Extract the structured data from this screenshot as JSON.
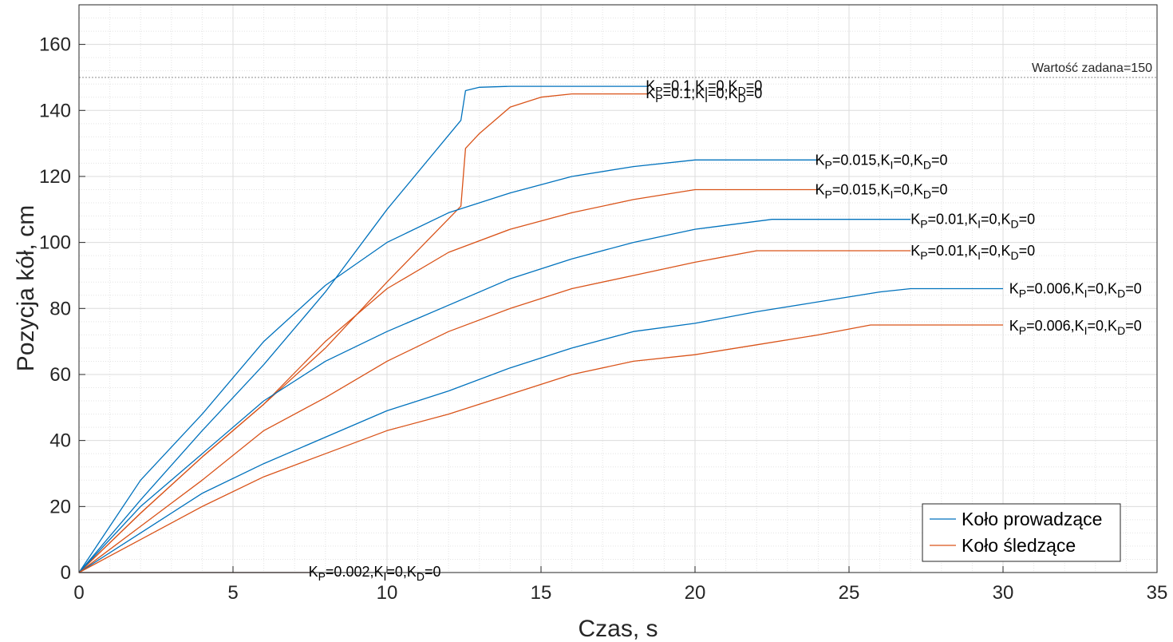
{
  "chart_data": {
    "type": "line",
    "xlabel": "Czas, s",
    "ylabel": "Pozycja kół, cm",
    "xlim": [
      0,
      35
    ],
    "ylim": [
      0,
      172
    ],
    "xticks": [
      0,
      5,
      10,
      15,
      20,
      25,
      30,
      35
    ],
    "yticks": [
      0,
      20,
      40,
      60,
      80,
      100,
      120,
      140,
      160
    ],
    "grid": "major and minor",
    "colors": {
      "prowadzace": "#0072BD",
      "sledzace": "#D95319",
      "reference": "#8c8c8c"
    },
    "reference_line": {
      "y": 150,
      "label": "Wartość zadana=150"
    },
    "legend": {
      "placement": "bottom-right",
      "entries": [
        {
          "label": "Koło prowadzące",
          "color": "#0072BD"
        },
        {
          "label": "Koło śledzące",
          "color": "#D95319"
        }
      ]
    },
    "series": [
      {
        "name": "Koło prowadzące",
        "gain": "0.1",
        "color": "#0072BD",
        "x": [
          0,
          2,
          4,
          6,
          8,
          10,
          12.4,
          12.55,
          13,
          14,
          18.5
        ],
        "y": [
          0,
          22,
          43,
          63,
          85,
          110,
          137,
          146,
          147,
          147.3,
          147.3
        ]
      },
      {
        "name": "Koło śledzące",
        "gain": "0.1",
        "color": "#D95319",
        "x": [
          0,
          2,
          4,
          6,
          8,
          10,
          12.4,
          12.55,
          13,
          14,
          15,
          16,
          18.5
        ],
        "y": [
          0,
          18,
          35,
          51,
          68,
          88,
          111,
          128.5,
          133,
          141,
          144,
          145,
          145
        ]
      },
      {
        "name": "Koło prowadzące",
        "gain": "0.015",
        "color": "#0072BD",
        "x": [
          0,
          2,
          4,
          6,
          8,
          10,
          12,
          14,
          16,
          18,
          20,
          24
        ],
        "y": [
          0,
          28,
          48,
          70,
          87,
          100,
          109,
          115,
          120,
          123,
          125,
          125
        ]
      },
      {
        "name": "Koło śledzące",
        "gain": "0.015",
        "color": "#D95319",
        "x": [
          0,
          2,
          4,
          6,
          8,
          10,
          12,
          14,
          16,
          18,
          20,
          24
        ],
        "y": [
          0,
          18,
          35,
          51,
          70,
          86,
          97,
          104,
          109,
          113,
          116,
          116
        ]
      },
      {
        "name": "Koło prowadzące",
        "gain": "0.01",
        "color": "#0072BD",
        "x": [
          0,
          2,
          4,
          6,
          8,
          10,
          12,
          14,
          16,
          18,
          20,
          22.5,
          27
        ],
        "y": [
          0,
          20,
          36,
          52,
          64,
          73,
          81,
          89,
          95,
          100,
          104,
          107,
          107
        ]
      },
      {
        "name": "Koło śledzące",
        "gain": "0.01",
        "color": "#D95319",
        "x": [
          0,
          2,
          4,
          6,
          8,
          10,
          12,
          14,
          16,
          18,
          20,
          22,
          27
        ],
        "y": [
          0,
          14,
          28,
          43,
          53,
          64,
          73,
          80,
          86,
          90,
          94,
          97.5,
          97.5
        ]
      },
      {
        "name": "Koło prowadzące",
        "gain": "0.006",
        "color": "#0072BD",
        "x": [
          0,
          2,
          4,
          6,
          8,
          10,
          12,
          14,
          16,
          18,
          20,
          22,
          24,
          26,
          27,
          30
        ],
        "y": [
          0,
          12,
          24,
          33,
          41,
          49,
          55,
          62,
          68,
          73,
          75.5,
          79,
          82,
          85,
          86,
          86
        ]
      },
      {
        "name": "Koło śledzące",
        "gain": "0.006",
        "color": "#D95319",
        "x": [
          0,
          2,
          4,
          6,
          8,
          10,
          12,
          14,
          16,
          18,
          20,
          22,
          24,
          25.7,
          30
        ],
        "y": [
          0,
          10,
          20,
          29,
          36,
          43,
          48,
          54,
          60,
          64,
          66,
          69,
          72,
          75,
          75
        ]
      },
      {
        "name": "Koło prowadzące",
        "gain": "0.002",
        "color": "#0072BD",
        "x": [
          0,
          7.5
        ],
        "y": [
          0,
          0
        ]
      },
      {
        "name": "Koło śledzące",
        "gain": "0.002",
        "color": "#D95319",
        "x": [
          0,
          7.5
        ],
        "y": [
          0,
          0
        ]
      }
    ],
    "annotations": [
      {
        "gain": "0.1",
        "x": 18.4,
        "y": 147.5,
        "parts": [
          "K",
          "P",
          "=0.1,K",
          "I",
          "=0,K",
          "D",
          "=0"
        ]
      },
      {
        "gain": "0.1",
        "x": 18.4,
        "y": 145.2,
        "parts": [
          "K",
          "P",
          "=0.1,K",
          "I",
          "=0,K",
          "D",
          "=0"
        ]
      },
      {
        "gain": "0.015",
        "x": 23.9,
        "y": 125,
        "parts": [
          "K",
          "P",
          "=0.015,K",
          "I",
          "=0,K",
          "D",
          "=0"
        ]
      },
      {
        "gain": "0.015",
        "x": 23.9,
        "y": 116,
        "parts": [
          "K",
          "P",
          "=0.015,K",
          "I",
          "=0,K",
          "D",
          "=0"
        ]
      },
      {
        "gain": "0.01",
        "x": 27.0,
        "y": 107,
        "parts": [
          "K",
          "P",
          "=0.01,K",
          "I",
          "=0,K",
          "D",
          "=0"
        ]
      },
      {
        "gain": "0.01",
        "x": 27.0,
        "y": 97.5,
        "parts": [
          "K",
          "P",
          "=0.01,K",
          "I",
          "=0,K",
          "D",
          "=0"
        ]
      },
      {
        "gain": "0.006",
        "x": 30.2,
        "y": 86,
        "parts": [
          "K",
          "P",
          "=0.006,K",
          "I",
          "=0,K",
          "D",
          "=0"
        ]
      },
      {
        "gain": "0.006",
        "x": 30.2,
        "y": 74.8,
        "parts": [
          "K",
          "P",
          "=0.006,K",
          "I",
          "=0,K",
          "D",
          "=0"
        ]
      },
      {
        "gain": "0.002",
        "x": 7.45,
        "y": 0.3,
        "parts": [
          "K",
          "P",
          "=0.002,K",
          "I",
          "=0,K",
          "D",
          "=0"
        ]
      }
    ]
  }
}
